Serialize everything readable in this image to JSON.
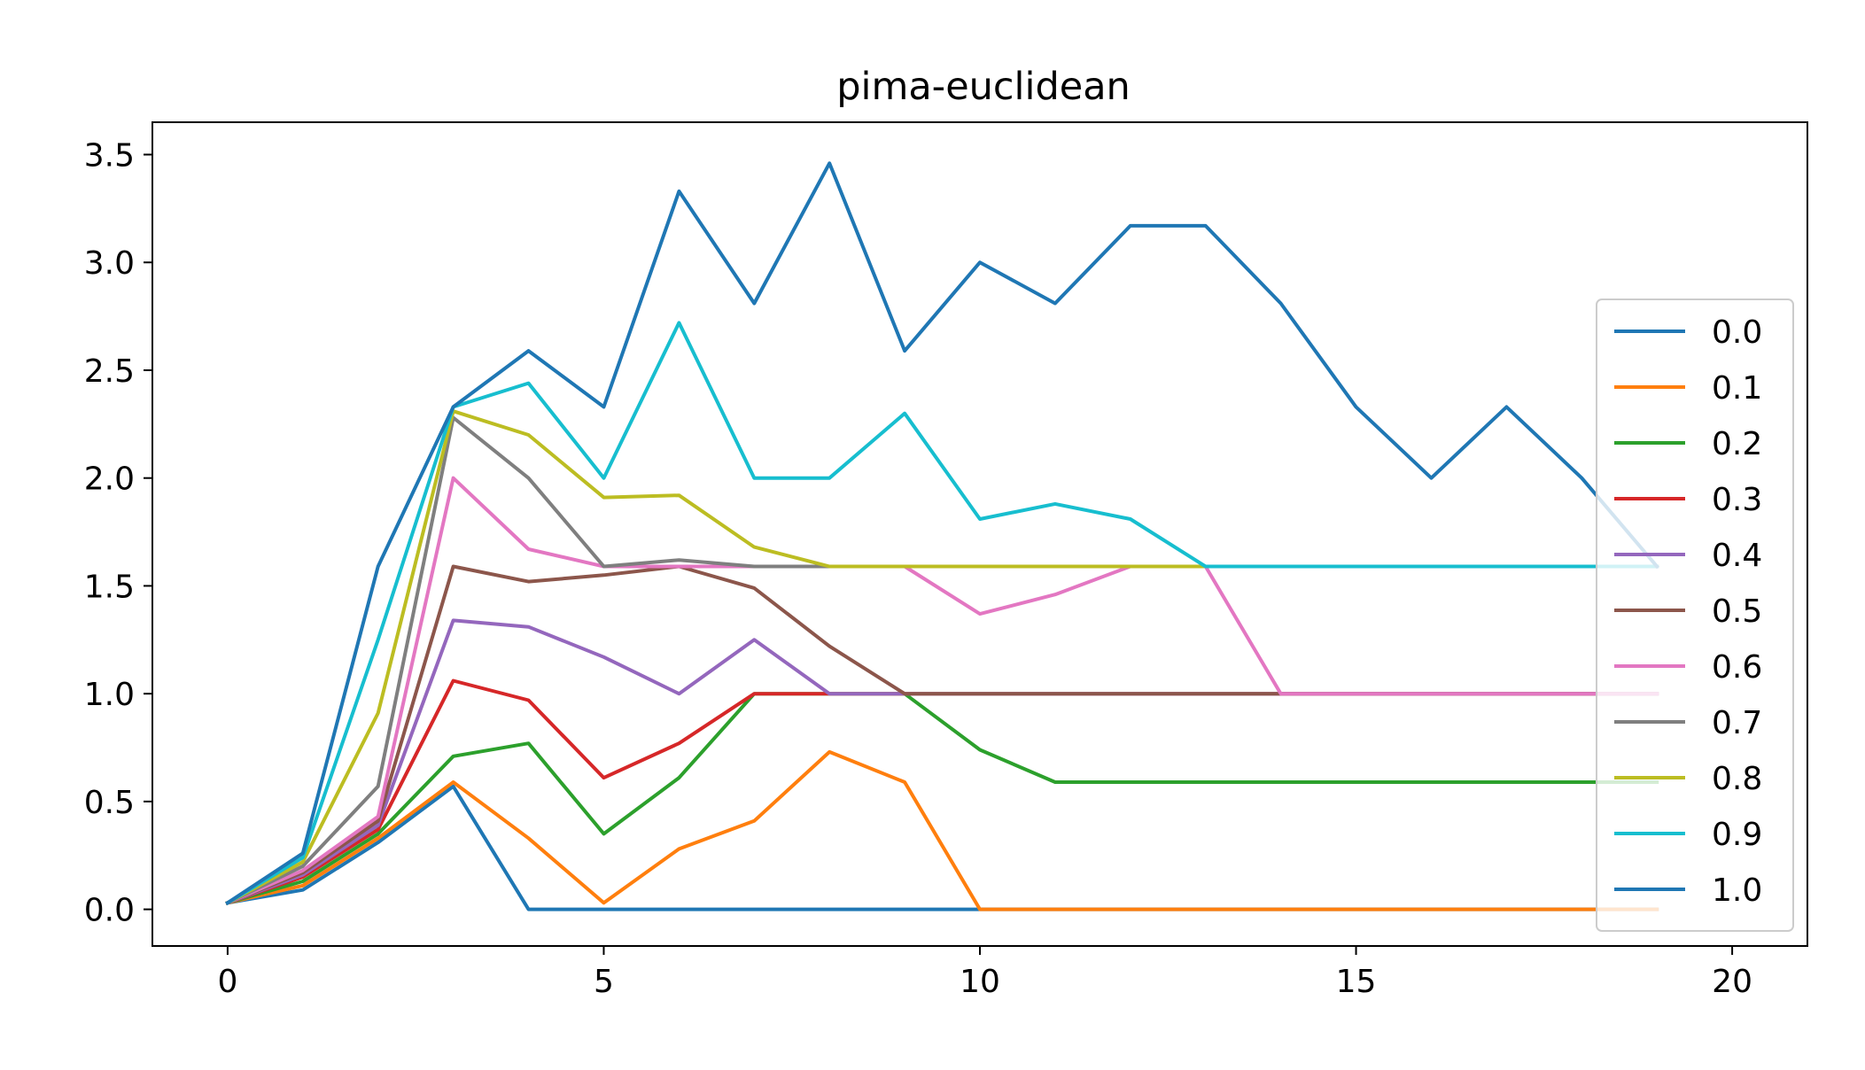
{
  "chart_data": {
    "type": "line",
    "title": "pima-euclidean",
    "xlabel": "",
    "ylabel": "",
    "xlim": [
      -1,
      21
    ],
    "ylim": [
      -0.17,
      3.65
    ],
    "xticks": [
      0,
      5,
      10,
      15,
      20
    ],
    "xtick_labels": [
      "0",
      "5",
      "10",
      "15",
      "20"
    ],
    "yticks": [
      0.0,
      0.5,
      1.0,
      1.5,
      2.0,
      2.5,
      3.0,
      3.5
    ],
    "ytick_labels": [
      "0.0",
      "0.5",
      "1.0",
      "1.5",
      "2.0",
      "2.5",
      "3.0",
      "3.5"
    ],
    "grid": false,
    "legend_position": "right",
    "x": [
      0,
      1,
      2,
      3,
      4,
      5,
      6,
      7,
      8,
      9,
      10,
      11,
      12,
      13,
      14,
      15,
      16,
      17,
      18,
      19
    ],
    "series": [
      {
        "name": "0.0",
        "color": "#1f77b4",
        "values": [
          0.03,
          0.09,
          0.31,
          0.57,
          0.0,
          0.0,
          0.0,
          0.0,
          0.0,
          0.0,
          0.0,
          0.0,
          0.0,
          0.0,
          0.0,
          0.0,
          0.0,
          0.0,
          0.0,
          0.0
        ]
      },
      {
        "name": "0.1",
        "color": "#ff7f0e",
        "values": [
          0.03,
          0.11,
          0.33,
          0.59,
          0.33,
          0.03,
          0.28,
          0.41,
          0.73,
          0.59,
          0.0,
          0.0,
          0.0,
          0.0,
          0.0,
          0.0,
          0.0,
          0.0,
          0.0,
          0.0
        ]
      },
      {
        "name": "0.2",
        "color": "#2ca02c",
        "values": [
          0.03,
          0.13,
          0.35,
          0.71,
          0.77,
          0.35,
          0.61,
          1.0,
          1.0,
          1.0,
          0.74,
          0.59,
          0.59,
          0.59,
          0.59,
          0.59,
          0.59,
          0.59,
          0.59,
          0.59
        ]
      },
      {
        "name": "0.3",
        "color": "#d62728",
        "values": [
          0.03,
          0.15,
          0.37,
          1.06,
          0.97,
          0.61,
          0.77,
          1.0,
          1.0,
          1.0,
          1.0,
          1.0,
          1.0,
          1.0,
          1.0,
          1.0,
          1.0,
          1.0,
          1.0,
          1.0
        ]
      },
      {
        "name": "0.4",
        "color": "#9467bd",
        "values": [
          0.03,
          0.16,
          0.39,
          1.34,
          1.31,
          1.17,
          1.0,
          1.25,
          1.0,
          1.0,
          1.0,
          1.0,
          1.0,
          1.0,
          1.0,
          1.0,
          1.0,
          1.0,
          1.0,
          1.0
        ]
      },
      {
        "name": "0.5",
        "color": "#8c564b",
        "values": [
          0.03,
          0.17,
          0.41,
          1.59,
          1.52,
          1.55,
          1.59,
          1.49,
          1.22,
          1.0,
          1.0,
          1.0,
          1.0,
          1.0,
          1.0,
          1.0,
          1.0,
          1.0,
          1.0,
          1.0
        ]
      },
      {
        "name": "0.6",
        "color": "#e377c2",
        "values": [
          0.03,
          0.18,
          0.43,
          2.0,
          1.67,
          1.59,
          1.59,
          1.59,
          1.59,
          1.59,
          1.37,
          1.46,
          1.59,
          1.59,
          1.0,
          1.0,
          1.0,
          1.0,
          1.0,
          1.0
        ]
      },
      {
        "name": "0.7",
        "color": "#7f7f7f",
        "values": [
          0.03,
          0.2,
          0.57,
          2.28,
          2.0,
          1.59,
          1.62,
          1.59,
          1.59,
          1.59,
          1.59,
          1.59,
          1.59,
          1.59,
          1.59,
          1.59,
          1.59,
          1.59,
          1.59,
          1.59
        ]
      },
      {
        "name": "0.8",
        "color": "#bcbd22",
        "values": [
          0.03,
          0.22,
          0.91,
          2.31,
          2.2,
          1.91,
          1.92,
          1.68,
          1.59,
          1.59,
          1.59,
          1.59,
          1.59,
          1.59,
          1.59,
          1.59,
          1.59,
          1.59,
          1.59,
          1.59
        ]
      },
      {
        "name": "0.9",
        "color": "#17becf",
        "values": [
          0.03,
          0.24,
          1.25,
          2.33,
          2.44,
          2.0,
          2.72,
          2.0,
          2.0,
          2.3,
          1.81,
          1.88,
          1.81,
          1.59,
          1.59,
          1.59,
          1.59,
          1.59,
          1.59,
          1.59
        ]
      },
      {
        "name": "1.0",
        "color": "#1f77b4",
        "values": [
          0.03,
          0.26,
          1.59,
          2.33,
          2.59,
          2.33,
          3.33,
          2.81,
          3.46,
          2.59,
          3.0,
          2.81,
          3.17,
          3.17,
          2.81,
          2.33,
          2.0,
          2.33,
          2.0,
          1.59
        ]
      }
    ]
  }
}
